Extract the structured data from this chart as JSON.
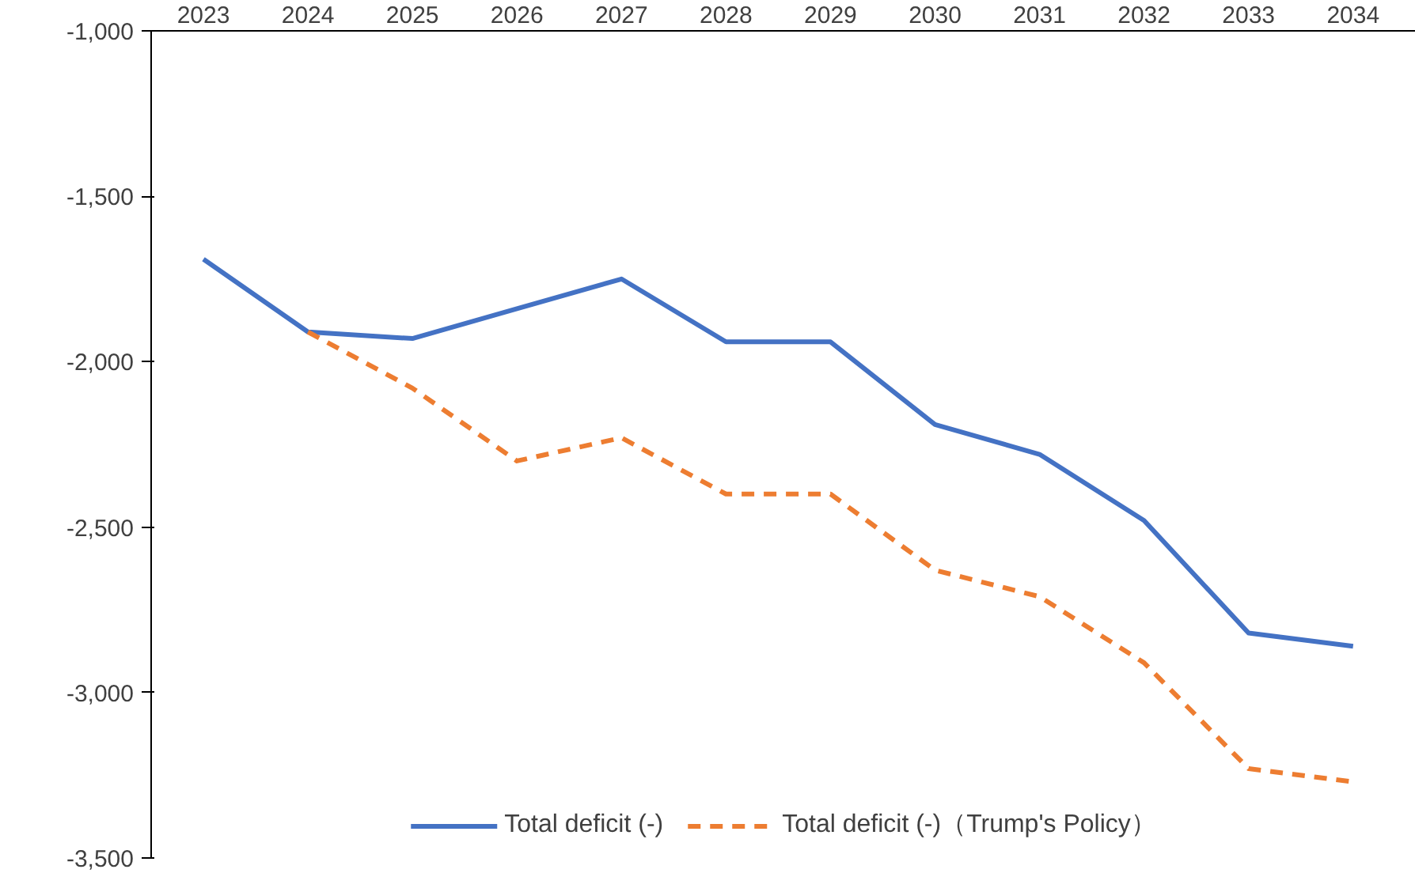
{
  "chart_data": {
    "type": "line",
    "categories": [
      "2023",
      "2024",
      "2025",
      "2026",
      "2027",
      "2028",
      "2029",
      "2030",
      "2031",
      "2032",
      "2033",
      "2034"
    ],
    "series": [
      {
        "name": "Total deficit (-)",
        "color": "#4472c4",
        "line_style": "solid",
        "values": [
          -1690,
          -1910,
          -1930,
          -1840,
          -1750,
          -1940,
          -1940,
          -2190,
          -2280,
          -2480,
          -2820,
          -2860
        ]
      },
      {
        "name": "Total deficit (-)（Trump's Policy）",
        "color": "#ed7d31",
        "line_style": "dashed",
        "values": [
          null,
          -1910,
          -2080,
          -2300,
          -2230,
          -2400,
          -2400,
          -2630,
          -2710,
          -2910,
          -3230,
          -3270
        ]
      }
    ],
    "ylim": [
      -3500,
      -1000
    ],
    "yticks": [
      {
        "value": -1000,
        "label": "-1,000"
      },
      {
        "value": -1500,
        "label": "-1,500"
      },
      {
        "value": -2000,
        "label": "-2,000"
      },
      {
        "value": -2500,
        "label": "-2,500"
      },
      {
        "value": -3000,
        "label": "-3,000"
      },
      {
        "value": -3500,
        "label": "-3,500"
      }
    ],
    "grid": false,
    "legend": "bottom"
  }
}
